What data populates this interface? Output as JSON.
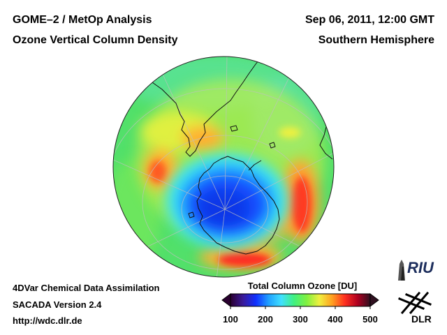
{
  "header": {
    "title_left_1": "GOME–2 / MetOp Analysis",
    "title_left_2": "Ozone Vertical Column Density",
    "title_right_1": "Sep 06, 2011, 12:00 GMT",
    "title_right_2": "Southern Hemisphere"
  },
  "footer": {
    "line1": "4DVar Chemical Data Assimilation",
    "line2": "SACADA Version 2.4",
    "line3": "http://wdc.dlr.de"
  },
  "colorbar": {
    "title": "Total Column Ozone [DU]",
    "ticks": [
      "100",
      "200",
      "300",
      "400",
      "500"
    ],
    "min": 100,
    "max": 500,
    "stops": [
      "#2a0030",
      "#3a1a9a",
      "#1030ff",
      "#20a0ff",
      "#40e0ff",
      "#40f080",
      "#80f040",
      "#f0f040",
      "#ffa020",
      "#ff3020",
      "#b00020",
      "#301020"
    ]
  },
  "map": {
    "projection": "orthographic",
    "hemisphere": "Southern Hemisphere",
    "ozone_hole_center_du": 190,
    "ozone_collar_max_du": 420,
    "background_du": 300
  },
  "logos": {
    "riu_text": "RIU",
    "dlr_text": "DLR"
  }
}
